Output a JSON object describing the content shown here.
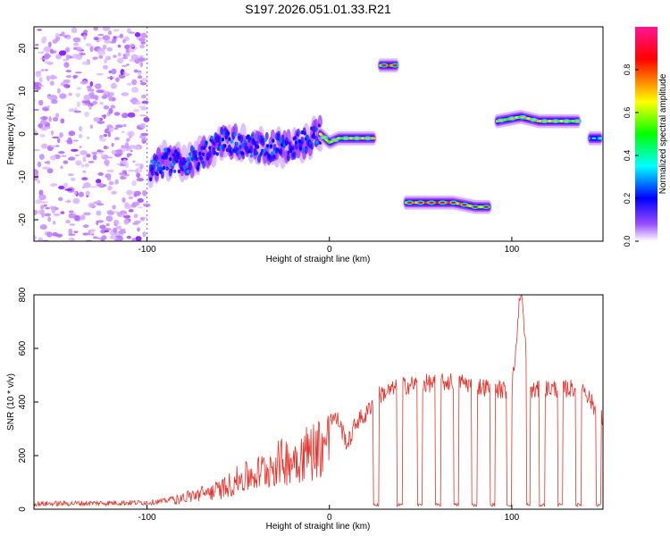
{
  "title": "S197.2026.051.01.33.R21",
  "chart_data": [
    {
      "type": "heatmap",
      "xlabel": "Height of straight line (km)",
      "ylabel": "Frequency (Hz)",
      "xlim": [
        -162,
        150
      ],
      "ylim": [
        -25,
        25
      ],
      "x_ticks": [
        -100,
        0,
        100
      ],
      "y_ticks": [
        -20,
        -10,
        0,
        10,
        20
      ],
      "colorbar": {
        "label": "Normalized spectral amplitude",
        "range": [
          0,
          1
        ],
        "ticks": [
          0.0,
          0.2,
          0.4,
          0.6,
          0.8
        ],
        "colormap": [
          "#ffffff",
          "#8000ff",
          "#0000ff",
          "#00ffff",
          "#00ff00",
          "#ffff00",
          "#ff0000",
          "#ff00ff"
        ]
      },
      "features": [
        {
          "label": "diffuse-noise",
          "x_range": [
            -162,
            -100
          ],
          "freq_range": [
            -25,
            25
          ],
          "level": 0.15
        },
        {
          "label": "rising-track",
          "points": [
            [
              -98,
              -9
            ],
            [
              -90,
              -6
            ],
            [
              -80,
              -7
            ],
            [
              -70,
              -5
            ],
            [
              -60,
              -2
            ],
            [
              -50,
              -2
            ],
            [
              -40,
              -3
            ],
            [
              -30,
              -3
            ],
            [
              -20,
              -3
            ],
            [
              -10,
              -1
            ],
            [
              -5,
              0
            ]
          ],
          "level": 0.45
        },
        {
          "label": "stable-track",
          "points": [
            [
              -5,
              0
            ],
            [
              0,
              -2
            ],
            [
              5,
              -1
            ],
            [
              15,
              -1
            ],
            [
              25,
              -1
            ]
          ],
          "level": 0.75
        },
        {
          "label": "upper-branch",
          "points": [
            [
              28,
              16
            ],
            [
              37,
              16
            ]
          ],
          "level": 0.9
        },
        {
          "label": "lower-branch",
          "points": [
            [
              42,
              -16
            ],
            [
              55,
              -16
            ],
            [
              68,
              -16
            ],
            [
              80,
              -17
            ],
            [
              88,
              -17
            ]
          ],
          "level": 0.85
        },
        {
          "label": "positive-branch",
          "points": [
            [
              92,
              3
            ],
            [
              105,
              4
            ],
            [
              115,
              3
            ],
            [
              125,
              3
            ],
            [
              137,
              3
            ]
          ],
          "level": 0.75
        },
        {
          "label": "edge-branch",
          "points": [
            [
              143,
              -1
            ],
            [
              149,
              -1
            ]
          ],
          "level": 0.45
        }
      ]
    },
    {
      "type": "line",
      "xlabel": "Height of straight line (km)",
      "ylabel": "SNR (10 * v/v)",
      "xlim": [
        -162,
        150
      ],
      "ylim": [
        0,
        800
      ],
      "x_ticks": [
        -100,
        0,
        100
      ],
      "y_ticks": [
        0,
        200,
        400,
        600,
        800
      ],
      "series": [
        {
          "name": "SNR",
          "color": "#e8322a",
          "envelope": {
            "x": [
              -162,
              -100,
              -90,
              -80,
              -70,
              -60,
              -50,
              -40,
              -30,
              -20,
              -10,
              0,
              5,
              10,
              15,
              20,
              25,
              40,
              50,
              60,
              70,
              80,
              90,
              100,
              105,
              110,
              120,
              130,
              140,
              145,
              150
            ],
            "y": [
              20,
              25,
              30,
              60,
              80,
              100,
              150,
              180,
              230,
              260,
              300,
              350,
              330,
              240,
              330,
              350,
              420,
              460,
              470,
              470,
              480,
              460,
              450,
              440,
              800,
              440,
              450,
              450,
              450,
              380,
              330
            ]
          },
          "dropouts": [
            [
              24,
              27
            ],
            [
              37,
              40
            ],
            [
              48,
              51
            ],
            [
              58,
              61
            ],
            [
              68,
              71
            ],
            [
              78,
              81
            ],
            [
              88,
              91
            ],
            [
              97,
              100
            ],
            [
              108,
              110
            ],
            [
              115,
              118
            ],
            [
              125,
              128
            ],
            [
              135,
              138
            ],
            [
              146,
              149
            ]
          ]
        }
      ]
    }
  ]
}
